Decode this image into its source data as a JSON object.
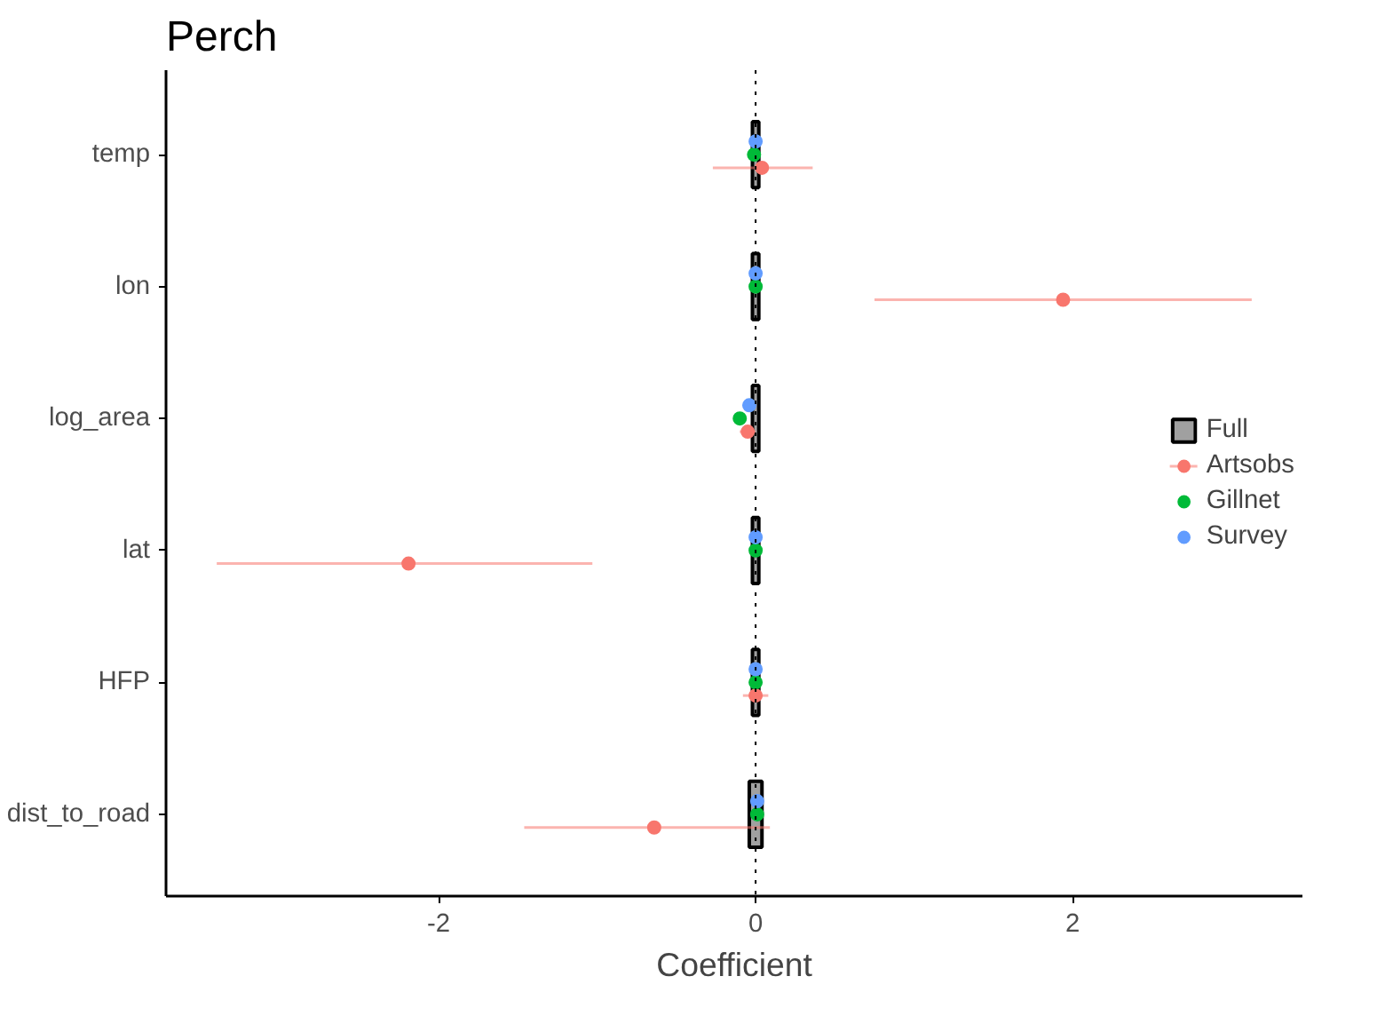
{
  "chart_data": {
    "type": "scatter",
    "title": "Perch",
    "xlabel": "Coefficient",
    "orientation": "horizontal",
    "categories": [
      "temp",
      "lon",
      "log_area",
      "lat",
      "HFP",
      "dist_to_road"
    ],
    "xlim": [
      -3.72,
      3.45
    ],
    "xticks": [
      -2,
      0,
      2
    ],
    "grid": false,
    "legend": "right",
    "marker": "circle",
    "ref_lines": [
      {
        "axis": "x",
        "value": 0,
        "line_style": "dotted",
        "color": "#000000"
      }
    ],
    "series": [
      {
        "name": "Full",
        "type": "bar",
        "color": "#a0a0a0",
        "base": [
          -0.02,
          -0.02,
          -0.02,
          -0.02,
          -0.02,
          -0.04
        ],
        "values": [
          0.04,
          0.04,
          0.04,
          0.04,
          0.04,
          0.08
        ]
      },
      {
        "name": "Artsobs",
        "color": "#f8766d",
        "values": [
          0.04,
          1.94,
          -0.05,
          -2.19,
          0.0,
          -0.64
        ],
        "errors": [
          [
            -0.27,
            0.36
          ],
          [
            0.75,
            3.13
          ],
          [
            -0.1,
            0.0
          ],
          [
            -3.4,
            -1.03
          ],
          [
            -0.08,
            0.08
          ],
          [
            -1.46,
            0.09
          ]
        ]
      },
      {
        "name": "Gillnet",
        "color": "#00ba38",
        "values": [
          -0.01,
          0.0,
          -0.1,
          0.0,
          0.0,
          0.01
        ]
      },
      {
        "name": "Survey",
        "color": "#619cff",
        "values": [
          0.0,
          0.0,
          -0.04,
          0.0,
          0.0,
          0.01
        ]
      }
    ]
  }
}
